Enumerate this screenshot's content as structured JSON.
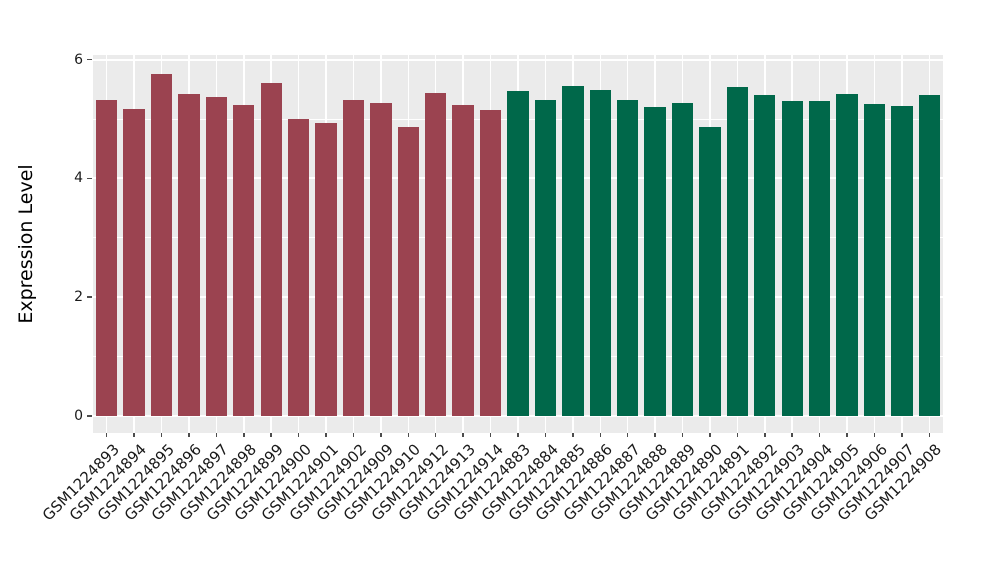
{
  "figure": {
    "background": "#FFFFFF"
  },
  "chart_data": {
    "type": "bar",
    "title": "",
    "xlabel": "",
    "ylabel": "Expression Level",
    "ylim": [
      0,
      6
    ],
    "yticks": [
      0,
      2,
      4,
      6
    ],
    "yticks_minor": [
      1,
      3,
      5
    ],
    "x_tick_rotation_deg": 45,
    "grid": true,
    "legend": "none",
    "panel_background": "#EBEBEB",
    "grid_color": "#FFFFFF",
    "axis_text_color": "#1A1A1A",
    "categories": [
      "GSM1224893",
      "GSM1224894",
      "GSM1224895",
      "GSM1224896",
      "GSM1224897",
      "GSM1224898",
      "GSM1224899",
      "GSM1224900",
      "GSM1224901",
      "GSM1224902",
      "GSM1224909",
      "GSM1224910",
      "GSM1224912",
      "GSM1224913",
      "GSM1224914",
      "GSM1224883",
      "GSM1224884",
      "GSM1224885",
      "GSM1224886",
      "GSM1224887",
      "GSM1224888",
      "GSM1224889",
      "GSM1224890",
      "GSM1224891",
      "GSM1224892",
      "GSM1224903",
      "GSM1224904",
      "GSM1224905",
      "GSM1224906",
      "GSM1224907",
      "GSM1224908"
    ],
    "values": [
      5.33,
      5.17,
      5.76,
      5.43,
      5.37,
      5.23,
      5.61,
      5.0,
      4.93,
      5.33,
      5.27,
      4.86,
      5.44,
      5.24,
      5.16,
      5.48,
      5.32,
      5.55,
      5.49,
      5.33,
      5.2,
      5.27,
      4.87,
      5.54,
      5.4,
      5.31,
      5.31,
      5.42,
      5.26,
      5.22,
      5.41
    ],
    "bar_groups": [
      {
        "name": "group-1-maroon",
        "color": "#9B4350",
        "start": 0,
        "count": 15
      },
      {
        "name": "group-2-green",
        "color": "#00684A",
        "start": 15,
        "count": 16
      }
    ]
  }
}
